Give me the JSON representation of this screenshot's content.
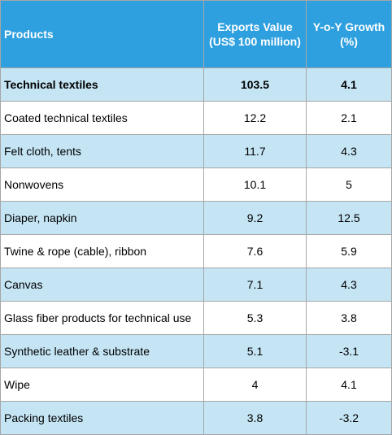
{
  "table": {
    "headers": {
      "products": "Products",
      "exports_value": "Exports Value (US$ 100 million)",
      "growth": "Y-o-Y Growth (%)"
    },
    "rows": [
      {
        "product": "Technical textiles",
        "exports_value": "103.5",
        "growth": "4.1"
      },
      {
        "product": "Coated technical textiles",
        "exports_value": "12.2",
        "growth": "2.1"
      },
      {
        "product": "Felt cloth, tents",
        "exports_value": "11.7",
        "growth": "4.3"
      },
      {
        "product": "Nonwovens",
        "exports_value": "10.1",
        "growth": "5"
      },
      {
        "product": "Diaper, napkin",
        "exports_value": "9.2",
        "growth": "12.5"
      },
      {
        "product": "Twine & rope (cable), ribbon",
        "exports_value": "7.6",
        "growth": "5.9"
      },
      {
        "product": "Canvas",
        "exports_value": "7.1",
        "growth": "4.3"
      },
      {
        "product": "Glass fiber products for technical use",
        "exports_value": "5.3",
        "growth": "3.8"
      },
      {
        "product": "Synthetic leather & substrate",
        "exports_value": "5.1",
        "growth": "-3.1"
      },
      {
        "product": "Wipe",
        "exports_value": "4",
        "growth": "4.1"
      },
      {
        "product": "Packing textiles",
        "exports_value": "3.8",
        "growth": "-3.2"
      }
    ]
  },
  "colors": {
    "header_bg": "#2fa0df",
    "header_text": "#ffffff",
    "stripe_bg": "#c5e5f5",
    "plain_bg": "#ffffff",
    "border": "#a6a6a6"
  }
}
